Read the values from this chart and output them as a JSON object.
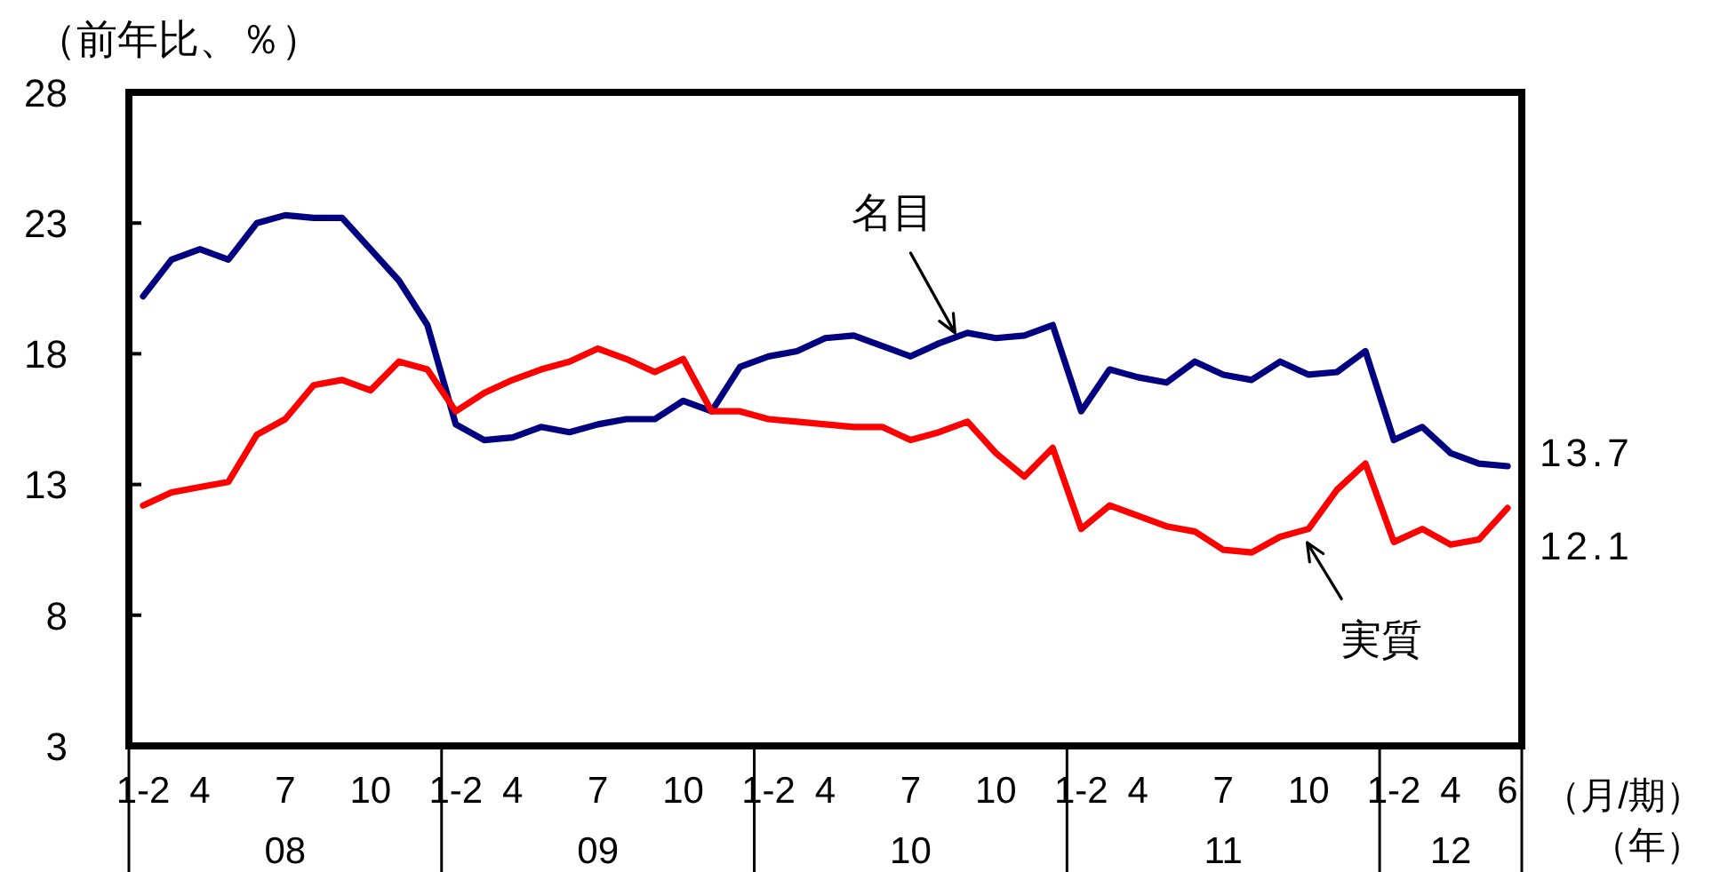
{
  "chart_data": {
    "type": "line",
    "ylabel": "（前年比、％）",
    "xlabel": "（月/期）（年）",
    "annotations": [
      "08",
      "09",
      "10",
      "11",
      "12"
    ],
    "categories": [
      "1-2",
      null,
      "4",
      null,
      null,
      "7",
      null,
      null,
      "10",
      null,
      null,
      "1-2",
      null,
      "4",
      null,
      null,
      "7",
      null,
      null,
      "10",
      null,
      null,
      "1-2",
      null,
      "4",
      null,
      null,
      "7",
      null,
      null,
      "10",
      null,
      null,
      "1-2",
      null,
      "4",
      null,
      null,
      "7",
      null,
      null,
      "10",
      null,
      null,
      "1-2",
      null,
      "4",
      null,
      "6"
    ],
    "ylim": [
      3,
      28
    ],
    "yticks": [
      3,
      8,
      13,
      18,
      23,
      28
    ],
    "series": [
      {
        "name": "名目",
        "color": "#000080",
        "values": [
          20.2,
          21.6,
          22.0,
          21.6,
          23.0,
          23.3,
          23.2,
          23.2,
          22.0,
          20.8,
          19.1,
          15.3,
          14.7,
          14.8,
          15.2,
          15.0,
          15.3,
          15.5,
          15.5,
          16.2,
          15.8,
          17.5,
          17.9,
          18.1,
          18.6,
          18.7,
          18.3,
          17.9,
          18.4,
          18.8,
          18.6,
          18.7,
          19.1,
          15.8,
          17.4,
          17.1,
          16.9,
          17.7,
          17.2,
          17.0,
          17.7,
          17.2,
          17.3,
          18.1,
          14.7,
          15.2,
          14.2,
          13.8,
          13.7
        ],
        "value_labels": [
          null,
          null,
          null,
          null,
          null,
          null,
          null,
          null,
          null,
          null,
          null,
          null,
          null,
          null,
          null,
          null,
          null,
          null,
          null,
          null,
          null,
          null,
          null,
          null,
          null,
          null,
          null,
          null,
          null,
          null,
          null,
          null,
          null,
          null,
          null,
          null,
          null,
          null,
          null,
          null,
          null,
          null,
          null,
          null,
          null,
          null,
          null,
          null,
          "13.7"
        ]
      },
      {
        "name": "実質",
        "color": "#ff0000",
        "values": [
          12.2,
          12.7,
          12.9,
          13.1,
          14.9,
          15.5,
          16.8,
          17.0,
          16.6,
          17.7,
          17.4,
          15.8,
          16.5,
          17.0,
          17.4,
          17.7,
          18.2,
          17.8,
          17.3,
          17.8,
          15.8,
          15.8,
          15.5,
          15.4,
          15.3,
          15.2,
          15.2,
          14.7,
          15.0,
          15.4,
          14.2,
          13.3,
          14.4,
          11.3,
          12.2,
          11.8,
          11.4,
          11.2,
          10.5,
          10.4,
          11.0,
          11.3,
          12.8,
          13.8,
          10.8,
          11.3,
          10.7,
          10.9,
          12.1
        ],
        "value_labels": [
          null,
          null,
          null,
          null,
          null,
          null,
          null,
          null,
          null,
          null,
          null,
          null,
          null,
          null,
          null,
          null,
          null,
          null,
          null,
          null,
          null,
          null,
          null,
          null,
          null,
          null,
          null,
          null,
          null,
          null,
          null,
          null,
          null,
          null,
          null,
          null,
          null,
          null,
          null,
          null,
          null,
          null,
          null,
          null,
          null,
          null,
          null,
          null,
          "12.1"
        ]
      }
    ]
  }
}
